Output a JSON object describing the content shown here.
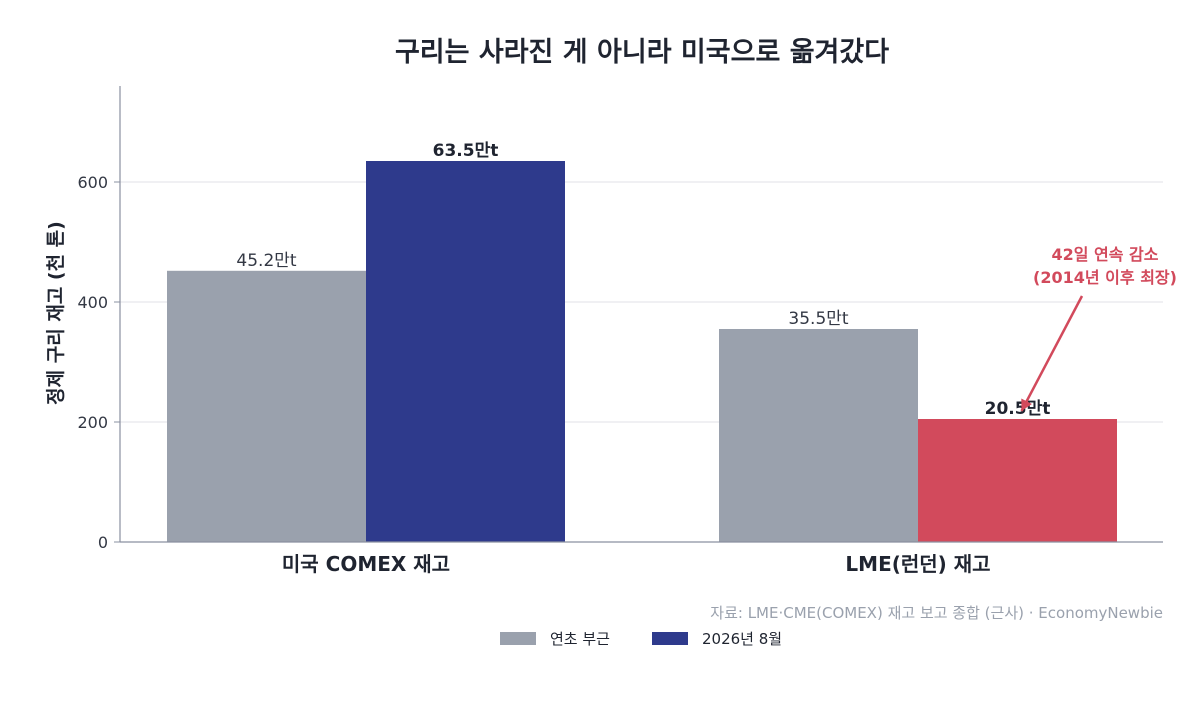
{
  "chart_data": {
    "type": "bar",
    "title": "구리는 사라진 게 아니라 미국으로 옮겨갔다",
    "ylabel": "정제 구리 재고 (천 톤)",
    "xlabel": "",
    "categories": [
      "미국 COMEX 재고",
      "LME(런던) 재고"
    ],
    "series": [
      {
        "name": "연초 부근",
        "values": [
          452,
          355
        ],
        "labels": [
          "45.2만t",
          "35.5만t"
        ],
        "colors": [
          "#9aa1ad",
          "#9aa1ad"
        ]
      },
      {
        "name": "2026년 8월",
        "values": [
          635,
          205
        ],
        "labels": [
          "63.5만t",
          "20.5만t"
        ],
        "colors": [
          "#2e3a8c",
          "#d24a5c"
        ]
      }
    ],
    "ylim": [
      0,
      760
    ],
    "yticks": [
      0,
      200,
      400,
      600
    ],
    "grid": true,
    "legend": "bottom-center",
    "annotation": {
      "lines": [
        "42일 연속 감소",
        "(2014년 이후 최장)"
      ],
      "color": "#d24a5c",
      "target_category": 1,
      "target_series": 1
    },
    "source": "자료: LME·CME(COMEX) 재고 보고 종합 (근사) · EconomyNewbie"
  }
}
